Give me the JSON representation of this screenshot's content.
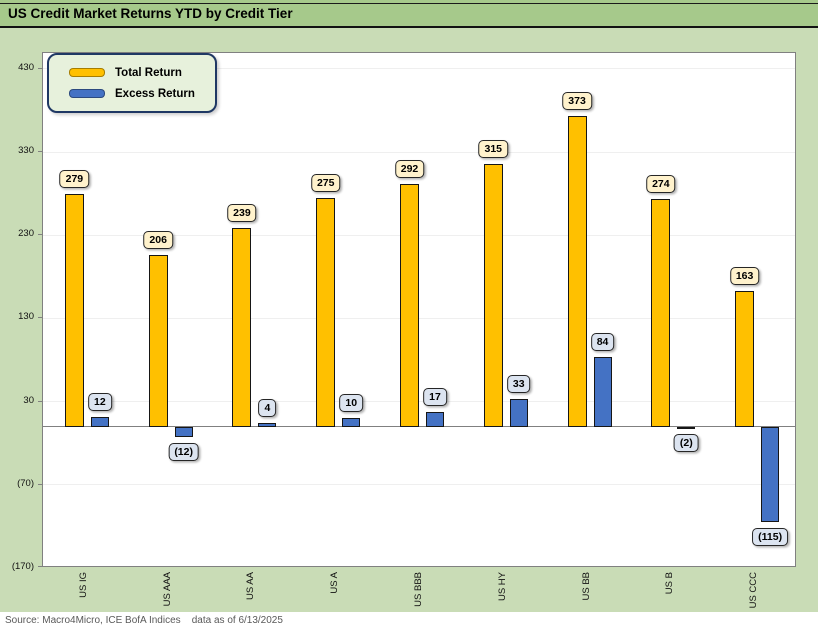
{
  "title": "US Credit Market Returns YTD by Credit Tier",
  "source_line": "Source: Macro4Micro, ICE BofA Indices    data as of 6/13/2025",
  "legend": {
    "items": [
      {
        "label": "Total Return"
      },
      {
        "label": "Excess Return"
      }
    ]
  },
  "colors": {
    "total_return": "#FFC000",
    "excess_return": "#4472C4",
    "total_label_bg": "#FFF2CC",
    "excess_label_bg": "#DCE4F0",
    "title_band_bg": "#A6C98B",
    "body_bg": "#C9DCB6",
    "legend_bg": "#E7F1DC",
    "legend_border": "#1F3864",
    "plot_border": "#808080",
    "gridline": "#EFEFEF",
    "zero_line": "#808080",
    "source_text": "#595959"
  },
  "chart_data": {
    "type": "bar",
    "title": "US Credit Market Returns YTD by Credit Tier",
    "categories": [
      "US IG",
      "US AAA",
      "US AA",
      "US A",
      "US BBB",
      "US HY",
      "US BB",
      "US B",
      "US CCC"
    ],
    "series": [
      {
        "name": "Total Return",
        "color": "#FFC000",
        "label_bg": "#FFF2CC",
        "values": [
          279,
          206,
          239,
          275,
          292,
          315,
          373,
          274,
          163
        ],
        "value_labels": [
          "279",
          "206",
          "239",
          "275",
          "292",
          "315",
          "373",
          "274",
          "163"
        ]
      },
      {
        "name": "Excess Return",
        "color": "#4472C4",
        "label_bg": "#DCE4F0",
        "values": [
          12,
          -12,
          4,
          10,
          17,
          33,
          84,
          -2,
          -115
        ],
        "value_labels": [
          "12",
          "(12)",
          "4",
          "10",
          "17",
          "33",
          "84",
          "(2)",
          "(115)"
        ]
      }
    ],
    "y_ticks": [
      430,
      330,
      230,
      130,
      30,
      -70,
      -170
    ],
    "y_tick_labels": [
      "430",
      "330",
      "230",
      "130",
      "30",
      "(70)",
      "(170)"
    ],
    "ylim": [
      -170,
      449
    ],
    "grid": true,
    "legend_position": "top-left",
    "xlabel": "",
    "ylabel": ""
  }
}
